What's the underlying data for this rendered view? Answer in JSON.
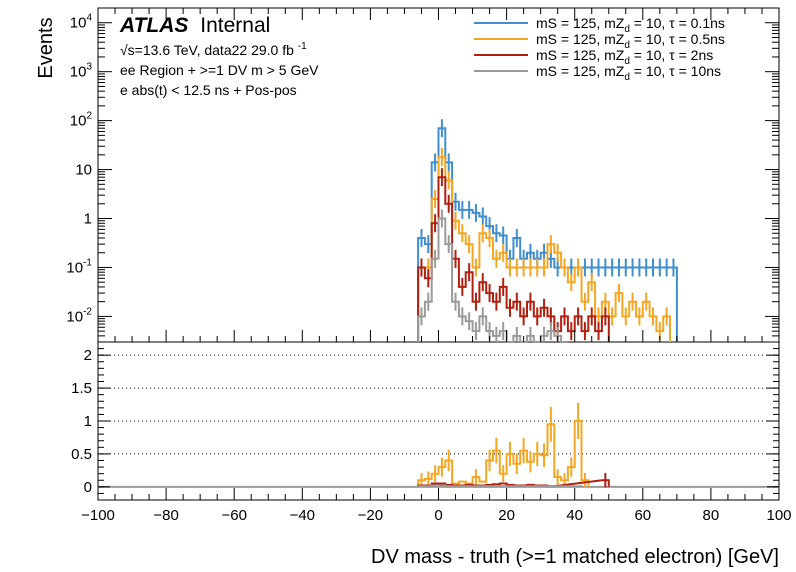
{
  "chart_data": {
    "type": "line",
    "style": "histogram-step",
    "atlas_label": {
      "bold": "ATLAS",
      "normal": "Internal"
    },
    "info_lines": {
      "energy_prefix": "√s=13.6 TeV, data22 29.0 fb",
      "energy_sup": "-1",
      "region": "ee Region + >=1 DV m > 5 GeV",
      "selection": "e abs(t) < 12.5 ns + Pos-pos"
    },
    "xlabel": "DV mass - truth (>=1 matched electron) [GeV]",
    "ylabel": "Events",
    "xlim": [
      -100,
      100
    ],
    "x_ticks": [
      "−100",
      "−80",
      "−60",
      "−40",
      "−20",
      "0",
      "20",
      "40",
      "60",
      "80",
      "100"
    ],
    "top_panel": {
      "yscale": "log",
      "ylim": [
        0.003,
        20000
      ],
      "y_ticks": [
        {
          "base": "10",
          "exp": "-2"
        },
        {
          "base": "10",
          "exp": "-1"
        },
        {
          "base": "1",
          "exp": ""
        },
        {
          "base": "10",
          "exp": ""
        },
        {
          "base": "10",
          "exp": "2"
        },
        {
          "base": "10",
          "exp": "3"
        },
        {
          "base": "10",
          "exp": "4"
        }
      ]
    },
    "bottom_panel": {
      "ylim": [
        -0.2,
        2.2
      ],
      "y_ticks": [
        "0",
        "0.5",
        "1",
        "1.5",
        "2"
      ],
      "gridlines": [
        0.5,
        1.0,
        1.5,
        2.0
      ]
    },
    "legend_position": "top-right",
    "series": [
      {
        "name": "mS = 125, mZd = 10, τ = 0.1ns",
        "label": {
          "pre": "mS = 125, mZ",
          "sub": "d",
          "post": " = 10, τ = 0.1ns"
        },
        "color": "#3f8fd0",
        "bins": [
          [
            -6,
            -4,
            0.4
          ],
          [
            -4,
            -2,
            0.3
          ],
          [
            -2,
            0,
            14
          ],
          [
            0,
            2,
            70
          ],
          [
            2,
            4,
            14
          ],
          [
            4,
            6,
            2.2
          ],
          [
            6,
            8,
            1.5
          ],
          [
            8,
            10,
            1.5
          ],
          [
            10,
            12,
            1.3
          ],
          [
            12,
            14,
            1.1
          ],
          [
            14,
            16,
            0.7
          ],
          [
            16,
            18,
            0.5
          ],
          [
            18,
            20,
            0.45
          ],
          [
            20,
            22,
            0.15
          ],
          [
            22,
            24,
            0.4
          ],
          [
            24,
            26,
            0.15
          ],
          [
            26,
            28,
            0.2
          ],
          [
            28,
            30,
            0.15
          ],
          [
            30,
            32,
            0.2
          ],
          [
            32,
            34,
            0.15
          ],
          [
            34,
            36,
            0.1
          ],
          [
            36,
            38,
            0.1
          ],
          [
            38,
            40,
            0.1
          ],
          [
            40,
            42,
            0.1
          ],
          [
            42,
            44,
            0.1
          ],
          [
            44,
            46,
            0.1
          ],
          [
            46,
            48,
            0.1
          ],
          [
            48,
            50,
            0.1
          ],
          [
            50,
            52,
            0.1
          ],
          [
            52,
            54,
            0.1
          ],
          [
            54,
            56,
            0.1
          ],
          [
            56,
            58,
            0.1
          ],
          [
            58,
            60,
            0.1
          ],
          [
            60,
            62,
            0.1
          ],
          [
            62,
            64,
            0.1
          ],
          [
            64,
            66,
            0.1
          ],
          [
            66,
            68,
            0.1
          ],
          [
            68,
            70,
            0.1
          ]
        ],
        "ratio": []
      },
      {
        "name": "mS = 125, mZd = 10, τ = 0.5ns",
        "label": {
          "pre": "mS = 125, mZ",
          "sub": "d",
          "post": " = 10, τ = 0.5ns"
        },
        "color": "#f5a623",
        "bins": [
          [
            -6,
            -4,
            0.1
          ],
          [
            -4,
            -2,
            0.1
          ],
          [
            -2,
            0,
            2.5
          ],
          [
            0,
            2,
            18
          ],
          [
            2,
            4,
            6
          ],
          [
            4,
            6,
            0.9
          ],
          [
            6,
            8,
            0.5
          ],
          [
            8,
            10,
            0.3
          ],
          [
            10,
            12,
            0.1
          ],
          [
            12,
            14,
            0.5
          ],
          [
            14,
            16,
            0.4
          ],
          [
            16,
            18,
            0.15
          ],
          [
            18,
            20,
            0.2
          ],
          [
            20,
            22,
            0.1
          ],
          [
            22,
            24,
            0.1
          ],
          [
            24,
            26,
            0.1
          ],
          [
            26,
            28,
            0.1
          ],
          [
            28,
            30,
            0.1
          ],
          [
            30,
            32,
            0.1
          ],
          [
            32,
            34,
            0.3
          ],
          [
            34,
            36,
            0.2
          ],
          [
            36,
            38,
            0.1
          ],
          [
            38,
            40,
            0.05
          ],
          [
            40,
            42,
            0.1
          ],
          [
            42,
            44,
            0.02
          ],
          [
            44,
            46,
            0.05
          ],
          [
            46,
            48,
            0.01
          ],
          [
            48,
            50,
            0.02
          ],
          [
            50,
            52,
            0.01
          ],
          [
            52,
            54,
            0.03
          ],
          [
            54,
            56,
            0.01
          ],
          [
            56,
            58,
            0.02
          ],
          [
            58,
            60,
            0.01
          ],
          [
            60,
            62,
            0.02
          ],
          [
            62,
            64,
            0.01
          ],
          [
            64,
            66,
            0.005
          ],
          [
            66,
            68,
            0.01
          ]
        ],
        "ratio": [
          [
            -6,
            -4,
            0.1
          ],
          [
            -4,
            -2,
            0.12
          ],
          [
            -2,
            0,
            0.2
          ],
          [
            0,
            2,
            0.3
          ],
          [
            2,
            4,
            0.4
          ],
          [
            4,
            6,
            0.05
          ],
          [
            6,
            8,
            0.08
          ],
          [
            8,
            10,
            0.05
          ],
          [
            10,
            12,
            0.15
          ],
          [
            12,
            14,
            0.08
          ],
          [
            14,
            16,
            0.4
          ],
          [
            16,
            18,
            0.55
          ],
          [
            18,
            20,
            0.2
          ],
          [
            20,
            22,
            0.5
          ],
          [
            22,
            24,
            0.35
          ],
          [
            24,
            26,
            0.55
          ],
          [
            26,
            28,
            0.38
          ],
          [
            28,
            30,
            0.5
          ],
          [
            30,
            32,
            0.48
          ],
          [
            32,
            34,
            0.95
          ],
          [
            34,
            36,
            0.15
          ],
          [
            36,
            38,
            0.1
          ],
          [
            38,
            40,
            0.3
          ],
          [
            40,
            42,
            1.0
          ],
          [
            42,
            44,
            0.1
          ]
        ]
      },
      {
        "name": "mS = 125, mZd = 10, τ = 2ns",
        "label": {
          "pre": "mS = 125, mZ",
          "sub": "d",
          "post": " = 10, τ = 2ns"
        },
        "color": "#b02010",
        "bins": [
          [
            -6,
            -4,
            0.1
          ],
          [
            -4,
            -2,
            0.06
          ],
          [
            -2,
            0,
            0.8
          ],
          [
            0,
            2,
            7
          ],
          [
            2,
            4,
            2
          ],
          [
            4,
            6,
            0.15
          ],
          [
            6,
            8,
            0.04
          ],
          [
            8,
            10,
            0.08
          ],
          [
            10,
            12,
            0.02
          ],
          [
            12,
            14,
            0.05
          ],
          [
            14,
            16,
            0.03
          ],
          [
            16,
            18,
            0.02
          ],
          [
            18,
            20,
            0.04
          ],
          [
            20,
            22,
            0.015
          ],
          [
            22,
            24,
            0.02
          ],
          [
            24,
            26,
            0.01
          ],
          [
            26,
            28,
            0.02
          ],
          [
            28,
            30,
            0.01
          ],
          [
            30,
            32,
            0.015
          ],
          [
            32,
            34,
            0.01
          ],
          [
            34,
            36,
            0.005
          ],
          [
            36,
            38,
            0.01
          ],
          [
            38,
            40,
            0.005
          ],
          [
            40,
            42,
            0.01
          ],
          [
            42,
            44,
            0.005
          ],
          [
            44,
            46,
            0.01
          ],
          [
            46,
            48,
            0.005
          ],
          [
            48,
            50,
            0.01
          ]
        ],
        "ratio": [
          [
            -6,
            -4,
            0.02
          ],
          [
            -4,
            -2,
            0.02
          ],
          [
            -2,
            0,
            0.05
          ],
          [
            0,
            2,
            0.05
          ],
          [
            2,
            4,
            0.03
          ],
          [
            4,
            6,
            0.02
          ],
          [
            6,
            8,
            0.02
          ],
          [
            8,
            10,
            0.03
          ],
          [
            10,
            12,
            0.02
          ],
          [
            12,
            14,
            0.02
          ],
          [
            14,
            16,
            0.03
          ],
          [
            16,
            18,
            0.04
          ],
          [
            18,
            20,
            0.05
          ],
          [
            20,
            22,
            0.03
          ],
          [
            22,
            24,
            0.02
          ],
          [
            24,
            26,
            0.02
          ],
          [
            26,
            28,
            0.03
          ],
          [
            28,
            30,
            0.02
          ],
          [
            30,
            32,
            0.02
          ],
          [
            32,
            34,
            0.01
          ],
          [
            48,
            50,
            0.1
          ]
        ]
      },
      {
        "name": "mS = 125, mZd = 10, τ = 10ns",
        "label": {
          "pre": "mS = 125, mZ",
          "sub": "d",
          "post": " = 10, τ = 10ns"
        },
        "color": "#9a9a9a",
        "bins": [
          [
            -6,
            -4,
            0.01
          ],
          [
            -4,
            -2,
            0.02
          ],
          [
            -2,
            0,
            0.15
          ],
          [
            0,
            2,
            1
          ],
          [
            2,
            4,
            0.3
          ],
          [
            4,
            6,
            0.02
          ],
          [
            6,
            8,
            0.01
          ],
          [
            8,
            10,
            0.008
          ],
          [
            10,
            12,
            0.005
          ],
          [
            12,
            14,
            0.01
          ],
          [
            14,
            16,
            0.005
          ],
          [
            16,
            18,
            0.004
          ],
          [
            18,
            20,
            0.005
          ],
          [
            20,
            22,
            0.003
          ],
          [
            22,
            24,
            0.004
          ],
          [
            24,
            26,
            0.003
          ],
          [
            26,
            28,
            0.004
          ],
          [
            28,
            30,
            0.003
          ],
          [
            30,
            32,
            0.004
          ],
          [
            32,
            34,
            0.005
          ],
          [
            34,
            36,
            0.004
          ],
          [
            36,
            38,
            0.003
          ]
        ],
        "ratio": [
          [
            -6,
            -4,
            0.01
          ],
          [
            -4,
            -2,
            0.01
          ],
          [
            -2,
            0,
            0.02
          ],
          [
            0,
            2,
            0.02
          ],
          [
            2,
            4,
            0.01
          ],
          [
            4,
            6,
            0.01
          ],
          [
            6,
            8,
            0.01
          ],
          [
            8,
            10,
            0.01
          ],
          [
            10,
            12,
            0.01
          ],
          [
            12,
            14,
            0.01
          ],
          [
            14,
            16,
            0.01
          ],
          [
            16,
            18,
            0.01
          ],
          [
            18,
            20,
            0.01
          ],
          [
            20,
            22,
            0.01
          ],
          [
            22,
            24,
            0.01
          ],
          [
            24,
            26,
            0.01
          ],
          [
            26,
            28,
            0.01
          ],
          [
            28,
            30,
            0.01
          ],
          [
            30,
            32,
            0.01
          ],
          [
            32,
            34,
            0.01
          ],
          [
            34,
            36,
            0.01
          ],
          [
            36,
            38,
            0.01
          ],
          [
            38,
            40,
            0.01
          ],
          [
            40,
            42,
            0.01
          ]
        ]
      }
    ]
  }
}
